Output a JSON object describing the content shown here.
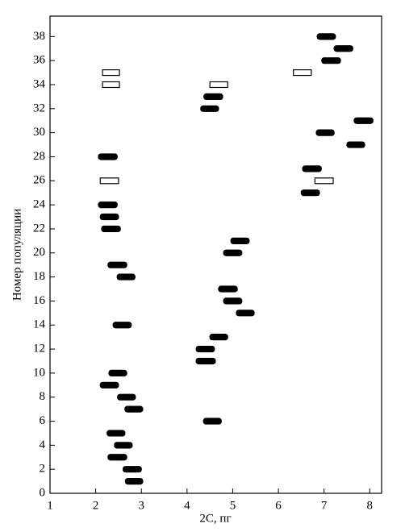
{
  "chart_data": {
    "type": "range",
    "x_label": "2C, пг",
    "y_label": "Номер популяции",
    "xlim": [
      1,
      8.26
    ],
    "xticks": [
      1,
      2,
      3,
      4,
      5,
      6,
      7,
      8
    ],
    "ylim": [
      0,
      39.7
    ],
    "yticks": [
      0,
      2,
      4,
      6,
      8,
      10,
      12,
      14,
      16,
      18,
      20,
      22,
      24,
      26,
      28,
      30,
      32,
      34,
      36,
      38
    ],
    "series": [
      {
        "color": "#000000",
        "filled": true,
        "y": [
          1,
          2,
          3,
          4,
          5,
          6,
          7,
          8,
          9,
          10,
          11,
          12,
          13,
          14,
          15,
          16,
          17,
          18,
          19,
          20,
          21,
          22,
          23,
          24,
          25,
          27,
          28,
          29,
          30,
          31,
          32,
          33,
          36,
          37,
          38
        ],
        "low": [
          2.65,
          2.6,
          2.27,
          2.41,
          2.25,
          4.36,
          2.64,
          2.48,
          2.1,
          2.29,
          4.2,
          4.2,
          4.5,
          2.38,
          5.08,
          4.8,
          4.69,
          2.47,
          2.27,
          4.8,
          4.96,
          2.13,
          2.1,
          2.06,
          6.5,
          6.53,
          2.06,
          7.5,
          6.83,
          7.66,
          4.3,
          4.37,
          6.95,
          7.22,
          6.85
        ],
        "high": [
          3.03,
          3.0,
          2.68,
          2.8,
          2.64,
          4.75,
          3.03,
          2.87,
          2.5,
          2.68,
          4.62,
          4.6,
          4.89,
          2.78,
          5.47,
          5.2,
          5.1,
          2.86,
          2.68,
          5.2,
          5.36,
          2.54,
          2.5,
          2.47,
          6.9,
          6.94,
          2.47,
          7.89,
          7.22,
          8.07,
          4.69,
          4.78,
          7.36,
          7.63,
          7.25
        ]
      },
      {
        "color": "#000000",
        "filled": false,
        "y": [
          26,
          26,
          34,
          34,
          35,
          35
        ],
        "low": [
          2.1,
          6.8,
          2.15,
          4.5,
          2.15,
          6.33
        ],
        "high": [
          2.5,
          7.2,
          2.52,
          4.89,
          2.52,
          6.72
        ]
      }
    ]
  }
}
